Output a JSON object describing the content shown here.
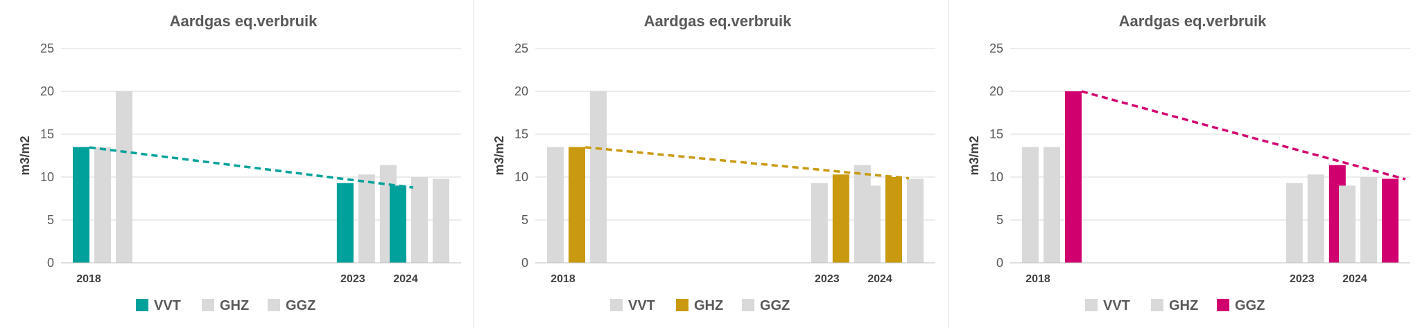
{
  "chart_data": [
    {
      "type": "bar",
      "title": "Aardgas eq.verbruik",
      "ylabel": "m3/m2",
      "ylim": [
        0,
        25
      ],
      "yticks": [
        0,
        5,
        10,
        15,
        20,
        25
      ],
      "x": [
        2018,
        2023,
        2024
      ],
      "categories": [
        "2018",
        "2023",
        "2024"
      ],
      "series": [
        {
          "name": "VVT",
          "values": [
            13.5,
            9.3,
            9.0
          ]
        },
        {
          "name": "GHZ",
          "values": [
            13.5,
            10.3,
            10.0
          ]
        },
        {
          "name": "GGZ",
          "values": [
            20.0,
            11.4,
            9.8
          ]
        }
      ],
      "highlight": "VVT",
      "highlight_color": "#00a19a",
      "other_color": "#d9d9d9",
      "trendline": {
        "series": "VVT",
        "style": "dashed"
      },
      "grid": true,
      "legend": "bottom"
    },
    {
      "type": "bar",
      "title": "Aardgas eq.verbruik",
      "ylabel": "m3/m2",
      "ylim": [
        0,
        25
      ],
      "yticks": [
        0,
        5,
        10,
        15,
        20,
        25
      ],
      "x": [
        2018,
        2023,
        2024
      ],
      "categories": [
        "2018",
        "2023",
        "2024"
      ],
      "series": [
        {
          "name": "VVT",
          "values": [
            13.5,
            9.3,
            9.0
          ]
        },
        {
          "name": "GHZ",
          "values": [
            13.5,
            10.3,
            10.0
          ]
        },
        {
          "name": "GGZ",
          "values": [
            20.0,
            11.4,
            9.8
          ]
        }
      ],
      "highlight": "GHZ",
      "highlight_color": "#c9990f",
      "other_color": "#d9d9d9",
      "trendline": {
        "series": "GHZ",
        "style": "dashed"
      },
      "grid": true,
      "legend": "bottom"
    },
    {
      "type": "bar",
      "title": "Aardgas eq.verbruik",
      "ylabel": "m3/m2",
      "ylim": [
        0,
        25
      ],
      "yticks": [
        0,
        5,
        10,
        15,
        20,
        25
      ],
      "x": [
        2018,
        2023,
        2024
      ],
      "categories": [
        "2018",
        "2023",
        "2024"
      ],
      "series": [
        {
          "name": "VVT",
          "values": [
            13.5,
            9.3,
            9.0
          ]
        },
        {
          "name": "GHZ",
          "values": [
            13.5,
            10.3,
            10.0
          ]
        },
        {
          "name": "GGZ",
          "values": [
            20.0,
            11.4,
            9.8
          ]
        }
      ],
      "highlight": "GGZ",
      "highlight_color": "#d1006f",
      "other_color": "#d9d9d9",
      "trendline": {
        "series": "GGZ",
        "style": "dashed"
      },
      "grid": true,
      "legend": "bottom"
    }
  ]
}
